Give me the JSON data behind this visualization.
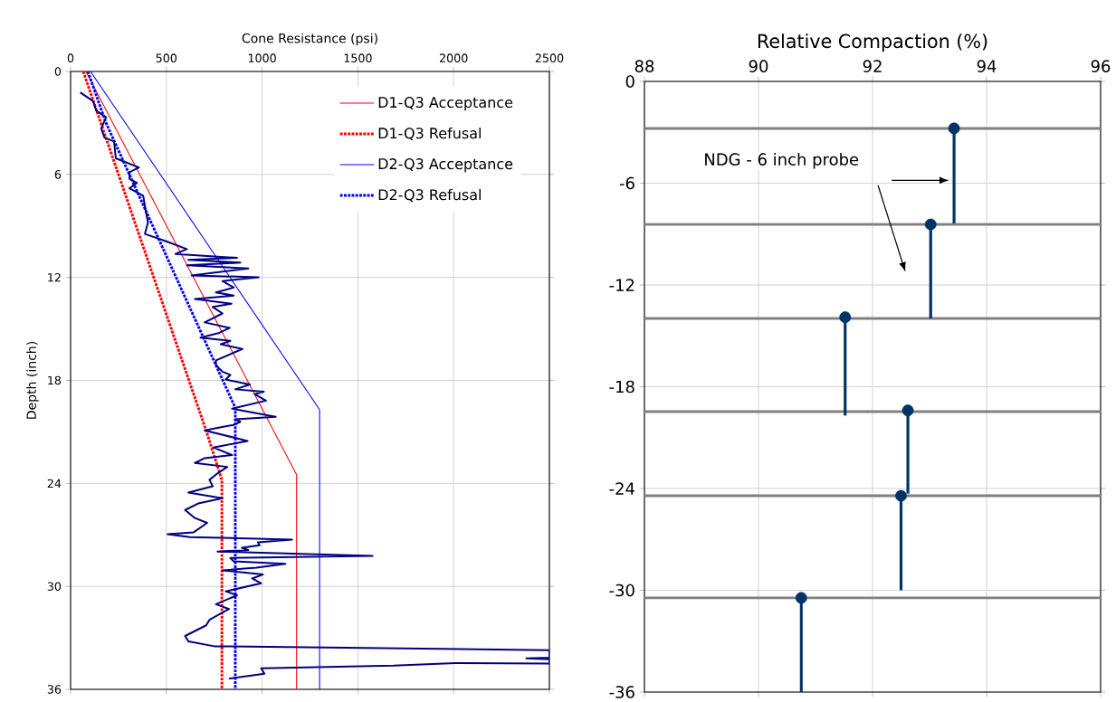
{
  "chart_data": [
    {
      "type": "line",
      "xlabel": "Cone Resistance (psi)",
      "ylabel": "Depth (inch)",
      "xlim": [
        0,
        2500
      ],
      "xticks": [
        0,
        500,
        1000,
        1500,
        2000,
        2500
      ],
      "ylim": [
        36,
        0
      ],
      "yticks": [
        0,
        6,
        12,
        18,
        24,
        30,
        36
      ],
      "grid": true,
      "legend": "top right",
      "series": [
        {
          "name": "D1-Q3 Acceptance",
          "color": "#ff0000",
          "line_style": "solid",
          "x": [
            80,
            1180,
            1180
          ],
          "values": [
            0,
            23.5,
            36
          ]
        },
        {
          "name": "D1-Q3 Refusal",
          "color": "#ff0000",
          "line_style": "dotted",
          "x": [
            66,
            710,
            790,
            790
          ],
          "values": [
            0,
            21,
            23.8,
            36
          ]
        },
        {
          "name": "D2-Q3 Acceptance",
          "color": "#0000ff",
          "line_style": "solid",
          "x": [
            104,
            1300,
            1300
          ],
          "values": [
            0,
            19.7,
            36
          ]
        },
        {
          "name": "D2-Q3 Refusal",
          "color": "#0000ff",
          "line_style": "dotted",
          "x": [
            90,
            185,
            860,
            860
          ],
          "values": [
            0,
            3,
            19.6,
            36
          ]
        },
        {
          "color": "#000080",
          "line_style": "solid",
          "x": [
            50,
            118,
            134,
            185,
            160,
            177,
            227,
            236,
            357,
            307,
            307,
            346,
            307,
            379,
            391,
            404,
            388,
            506,
            607,
            548,
            869,
            615,
            886,
            607,
            928,
            632,
            982,
            793,
            852,
            759,
            852,
            649,
            840,
            742,
            793,
            700,
            831,
            776,
            678,
            834,
            784,
            897,
            759,
            759,
            793,
            834,
            810,
            936,
            860,
            1009,
            961,
            1020,
            843,
            1071,
            860,
            886,
            852,
            700,
            924,
            745,
            843,
            700,
            649,
            818,
            767,
            725,
            742,
            615,
            793,
            666,
            598,
            649,
            713,
            641,
            506,
            624,
            1156,
            978,
            987,
            894,
            928,
            767,
            1577,
            834,
            852,
            1122,
            970,
            793,
            1004,
            948,
            995,
            810,
            869,
            759,
            827,
            725,
            708,
            598,
            615,
            750,
            2500,
            2500,
            2380,
            2500,
            2500,
            2008,
            1687,
            995,
            1012,
            827
          ],
          "values": [
            1.22,
            1.73,
            2.29,
            2.67,
            3.33,
            3.85,
            4.08,
            5.06,
            5.59,
            5.87,
            6.25,
            6.49,
            6.81,
            7.24,
            8.03,
            8.79,
            9.47,
            9.92,
            10.35,
            10.63,
            10.86,
            10.97,
            11.14,
            11.29,
            11.48,
            11.88,
            11.99,
            12.21,
            12.59,
            12.87,
            13.06,
            13.25,
            13.53,
            13.72,
            14.1,
            14.62,
            14.94,
            15.23,
            15.51,
            15.7,
            15.89,
            16.17,
            16.83,
            17.11,
            17.49,
            17.68,
            17.95,
            18.24,
            18.52,
            18.66,
            18.8,
            19.18,
            19.65,
            20.12,
            20.27,
            20.41,
            20.59,
            20.91,
            21.53,
            21.91,
            22.35,
            22.53,
            22.81,
            23.04,
            23.42,
            23.79,
            24.17,
            24.54,
            24.87,
            25.17,
            25.55,
            26.02,
            26.3,
            26.86,
            26.96,
            27.13,
            27.27,
            27.43,
            27.6,
            27.75,
            27.88,
            27.97,
            28.23,
            28.35,
            28.54,
            28.69,
            28.91,
            29.07,
            29.31,
            29.54,
            29.82,
            30.29,
            30.52,
            31.04,
            31.32,
            31.95,
            32.27,
            32.89,
            33.21,
            33.49,
            33.72,
            34.15,
            34.2,
            34.25,
            34.5,
            34.47,
            34.62,
            34.77,
            35.09,
            35.37
          ]
        }
      ]
    },
    {
      "type": "scatter",
      "xlabel": "Relative Compaction (%)",
      "xlim": [
        88,
        96
      ],
      "xticks": [
        88,
        90,
        92,
        94,
        96
      ],
      "ylim": [
        -36,
        0
      ],
      "yticks": [
        -36,
        -30,
        -24,
        -18,
        -12,
        -6,
        0
      ],
      "grid": true,
      "marker": "circle",
      "annotations": [
        "NDG - 6 inch probe"
      ],
      "ref_lines": [
        {
          "axis": "y",
          "value": -2.77,
          "color": "#808080"
        },
        {
          "axis": "y",
          "value": -8.43,
          "color": "#808080"
        },
        {
          "axis": "y",
          "value": -13.97,
          "color": "#808080"
        },
        {
          "axis": "y",
          "value": -19.47,
          "color": "#808080"
        },
        {
          "axis": "y",
          "value": -24.43,
          "color": "#808080"
        },
        {
          "axis": "y",
          "value": -30.45,
          "color": "#808080"
        }
      ],
      "series": [
        {
          "color": "#003366",
          "x": [
            93.43,
            93.02,
            91.52,
            92.62,
            92.5,
            90.75
          ],
          "values": [
            -2.77,
            -8.43,
            -13.9,
            -19.4,
            -24.43,
            -30.45
          ],
          "errors": [
            [
              -8.37,
              -2.77
            ],
            [
              -13.97,
              -8.43
            ],
            [
              -19.7,
              -13.9
            ],
            [
              -24.3,
              -19.4
            ],
            [
              -30,
              -24.43
            ],
            [
              -36,
              -30.45
            ]
          ]
        }
      ]
    }
  ]
}
